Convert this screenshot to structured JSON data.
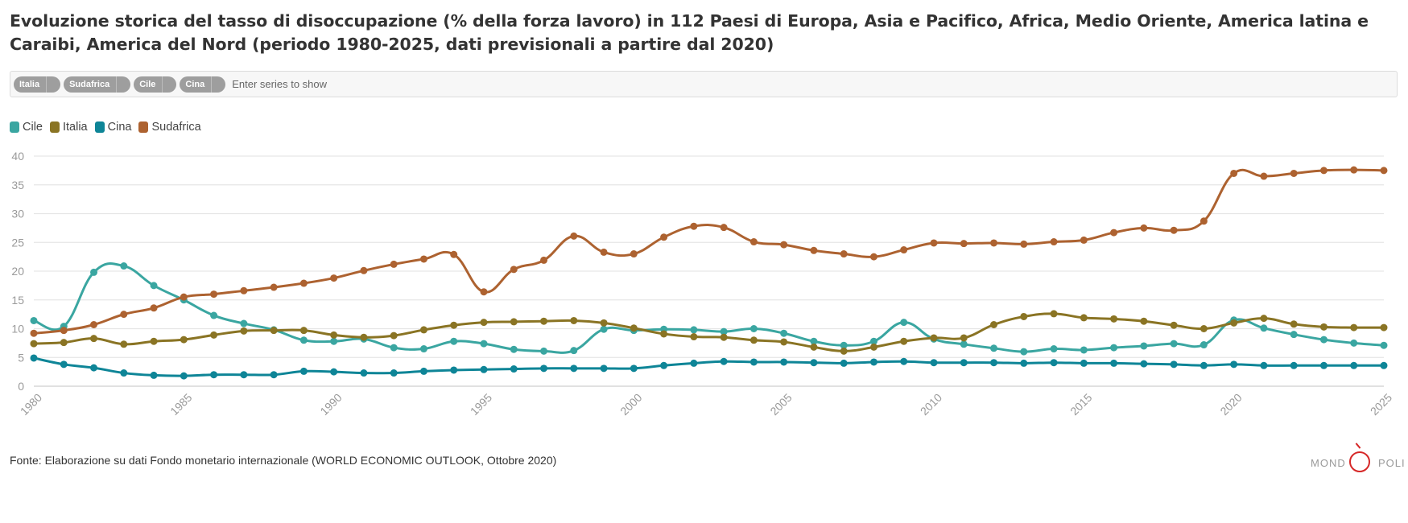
{
  "title": "Evoluzione storica del tasso di disoccupazione (% della forza lavoro) in 112 Paesi di Europa, Asia e Pacifico, Africa, Medio Oriente, America latina e Caraibi, America del Nord (periodo 1980-2025, dati previsionali a partire dal 2020)",
  "series_selector": {
    "chips": [
      "Italia",
      "Sudafrica",
      "Cile",
      "Cina"
    ],
    "placeholder": "Enter series to show"
  },
  "legend": [
    {
      "label": "Cile",
      "color": "#3aa6a1"
    },
    {
      "label": "Italia",
      "color": "#8a7424"
    },
    {
      "label": "Cina",
      "color": "#0e8597"
    },
    {
      "label": "Sudafrica",
      "color": "#ad6230"
    }
  ],
  "source": "Fonte: Elaborazione su dati Fondo monetario internazionale (WORLD ECONOMIC OUTLOOK, Ottobre 2020)",
  "logo": {
    "left": "MOND",
    "right": "POLI"
  },
  "chart_data": {
    "type": "line",
    "title": "",
    "xlabel": "",
    "ylabel": "",
    "x": [
      1980,
      1981,
      1982,
      1983,
      1984,
      1985,
      1986,
      1987,
      1988,
      1989,
      1990,
      1991,
      1992,
      1993,
      1994,
      1995,
      1996,
      1997,
      1998,
      1999,
      2000,
      2001,
      2002,
      2003,
      2004,
      2005,
      2006,
      2007,
      2008,
      2009,
      2010,
      2011,
      2012,
      2013,
      2014,
      2015,
      2016,
      2017,
      2018,
      2019,
      2020,
      2021,
      2022,
      2023,
      2024,
      2025
    ],
    "xlim": [
      1980,
      2025
    ],
    "xticks": [
      1980,
      1985,
      1990,
      1995,
      2000,
      2005,
      2010,
      2015,
      2020,
      2025
    ],
    "ylim": [
      0,
      40
    ],
    "yticks": [
      0,
      5,
      10,
      15,
      20,
      25,
      30,
      35,
      40
    ],
    "grid": "horizontal",
    "legend_position": "top-left",
    "series": [
      {
        "name": "Cile",
        "color": "#3aa6a1",
        "values": [
          11.4,
          10.4,
          19.8,
          20.9,
          17.5,
          15.0,
          12.3,
          10.9,
          9.8,
          8.0,
          7.8,
          8.2,
          6.7,
          6.5,
          7.8,
          7.4,
          6.4,
          6.1,
          6.2,
          9.9,
          9.7,
          9.9,
          9.8,
          9.5,
          10.0,
          9.2,
          7.8,
          7.1,
          7.8,
          11.1,
          8.2,
          7.3,
          6.6,
          6.0,
          6.5,
          6.3,
          6.7,
          7.0,
          7.4,
          7.2,
          11.5,
          10.1,
          9.0,
          8.1,
          7.5,
          7.1
        ]
      },
      {
        "name": "Italia",
        "color": "#8a7424",
        "values": [
          7.4,
          7.6,
          8.3,
          7.3,
          7.8,
          8.1,
          8.9,
          9.6,
          9.7,
          9.7,
          8.9,
          8.5,
          8.8,
          9.8,
          10.6,
          11.1,
          11.2,
          11.3,
          11.4,
          11.0,
          10.1,
          9.1,
          8.6,
          8.5,
          8.0,
          7.7,
          6.8,
          6.1,
          6.8,
          7.8,
          8.4,
          8.4,
          10.7,
          12.1,
          12.6,
          11.9,
          11.7,
          11.3,
          10.6,
          10.0,
          11.0,
          11.8,
          10.8,
          10.3,
          10.2,
          10.2
        ]
      },
      {
        "name": "Cina",
        "color": "#0e8597",
        "values": [
          4.9,
          3.8,
          3.2,
          2.3,
          1.9,
          1.8,
          2.0,
          2.0,
          2.0,
          2.6,
          2.5,
          2.3,
          2.3,
          2.6,
          2.8,
          2.9,
          3.0,
          3.1,
          3.1,
          3.1,
          3.1,
          3.6,
          4.0,
          4.3,
          4.2,
          4.2,
          4.1,
          4.0,
          4.2,
          4.3,
          4.1,
          4.1,
          4.1,
          4.0,
          4.1,
          4.0,
          4.0,
          3.9,
          3.8,
          3.6,
          3.8,
          3.6,
          3.6,
          3.6,
          3.6,
          3.6
        ]
      },
      {
        "name": "Sudafrica",
        "color": "#ad6230",
        "values": [
          9.2,
          9.7,
          10.7,
          12.5,
          13.6,
          15.5,
          16.0,
          16.6,
          17.2,
          17.9,
          18.8,
          20.1,
          21.2,
          22.1,
          22.9,
          16.4,
          20.3,
          21.9,
          26.1,
          23.3,
          23.0,
          25.9,
          27.8,
          27.6,
          25.1,
          24.6,
          23.6,
          23.0,
          22.5,
          23.7,
          24.9,
          24.8,
          24.9,
          24.7,
          25.1,
          25.4,
          26.7,
          27.5,
          27.1,
          28.7,
          37.0,
          36.5,
          37.0,
          37.5,
          37.6,
          37.5
        ]
      }
    ]
  }
}
